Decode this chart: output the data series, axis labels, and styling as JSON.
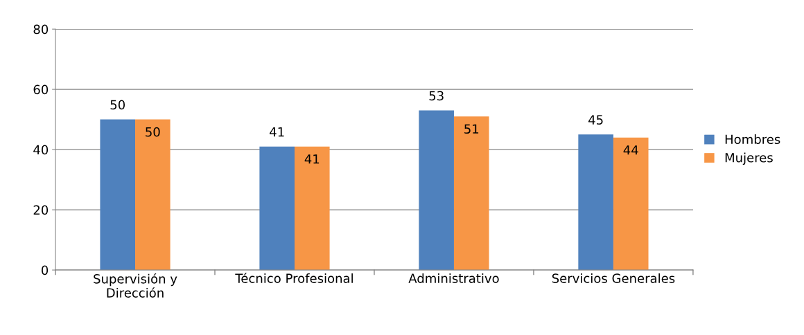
{
  "chart_data": {
    "type": "bar",
    "categories": [
      "Supervisión y\nDirección",
      "Técnico Profesional",
      "Administrativo",
      "Servicios Generales"
    ],
    "series": [
      {
        "name": "Hombres",
        "color": "#4f81bd",
        "values": [
          50,
          41,
          53,
          45
        ]
      },
      {
        "name": "Mujeres",
        "color": "#f79646",
        "values": [
          50,
          41,
          51,
          44
        ]
      }
    ],
    "ylim": [
      0,
      80
    ],
    "yticks": [
      0,
      20,
      40,
      60,
      80
    ],
    "grid": "y",
    "legend": "right",
    "data_labels": true
  }
}
